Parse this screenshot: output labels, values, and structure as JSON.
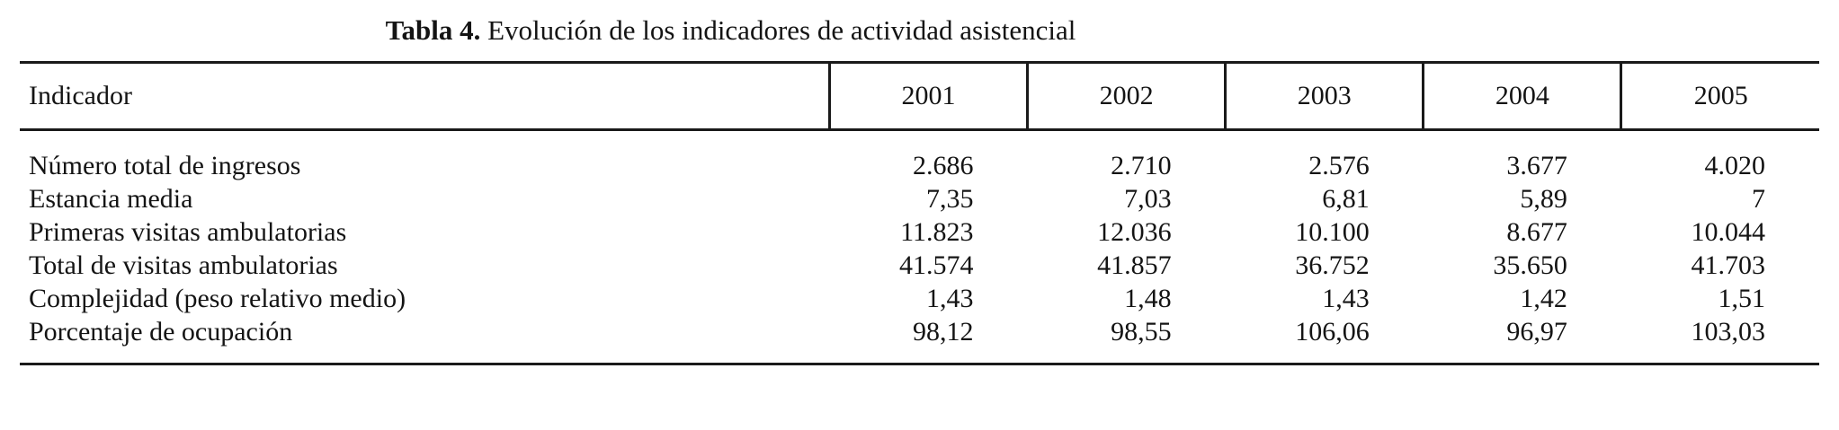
{
  "title": {
    "label": "Tabla 4.",
    "text": "Evolución de los indicadores de actividad asistencial"
  },
  "table": {
    "header": {
      "indicator": "Indicador",
      "years": [
        "2001",
        "2002",
        "2003",
        "2004",
        "2005"
      ]
    },
    "rows": [
      {
        "indicator": "Número total de ingresos",
        "values": [
          "2.686",
          "2.710",
          "2.576",
          "3.677",
          "4.020"
        ]
      },
      {
        "indicator": "Estancia media",
        "values": [
          "7,35",
          "7,03",
          "6,81",
          "5,89",
          "7"
        ]
      },
      {
        "indicator": "Primeras visitas ambulatorias",
        "values": [
          "11.823",
          "12.036",
          "10.100",
          "8.677",
          "10.044"
        ]
      },
      {
        "indicator": "Total de visitas ambulatorias",
        "values": [
          "41.574",
          "41.857",
          "36.752",
          "35.650",
          "41.703"
        ]
      },
      {
        "indicator": "Complejidad (peso relativo medio)",
        "values": [
          "1,43",
          "1,48",
          "1,43",
          "1,42",
          "1,51"
        ]
      },
      {
        "indicator": "Porcentaje de ocupación",
        "values": [
          "98,12",
          "98,55",
          "106,06",
          "96,97",
          "103,03"
        ]
      }
    ]
  },
  "chart_data": {
    "type": "table",
    "title": "Tabla 4. Evolución de los indicadores de actividad asistencial",
    "columns": [
      "Indicador",
      "2001",
      "2002",
      "2003",
      "2004",
      "2005"
    ],
    "rows": [
      {
        "indicator": "Número total de ingresos",
        "values_numeric": [
          2686,
          2710,
          2576,
          3677,
          4020
        ]
      },
      {
        "indicator": "Estancia media",
        "values_numeric": [
          7.35,
          7.03,
          6.81,
          5.89,
          7
        ]
      },
      {
        "indicator": "Primeras visitas ambulatorias",
        "values_numeric": [
          11823,
          12036,
          10100,
          8677,
          10044
        ]
      },
      {
        "indicator": "Total de visitas ambulatorias",
        "values_numeric": [
          41574,
          41857,
          36752,
          35650,
          41703
        ]
      },
      {
        "indicator": "Complejidad (peso relativo medio)",
        "values_numeric": [
          1.43,
          1.48,
          1.43,
          1.42,
          1.51
        ]
      },
      {
        "indicator": "Porcentaje de ocupación",
        "values_numeric": [
          98.12,
          98.55,
          106.06,
          96.97,
          103.03
        ]
      }
    ]
  }
}
